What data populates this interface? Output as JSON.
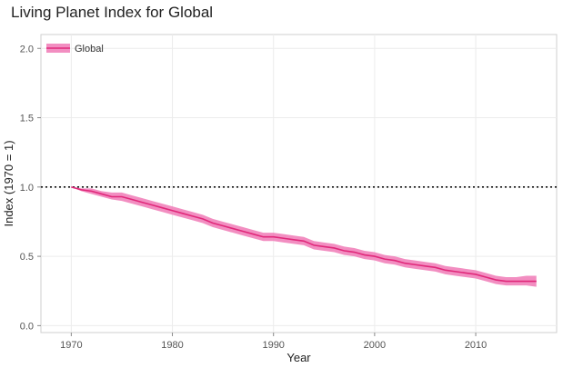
{
  "chart_data": {
    "type": "line",
    "title": "Living Planet Index for Global",
    "xlabel": "Year",
    "ylabel": "Index (1970 = 1)",
    "xlim": [
      1967,
      2018
    ],
    "ylim": [
      -0.05,
      2.1
    ],
    "xticks": [
      1970,
      1980,
      1990,
      2000,
      2010
    ],
    "yticks": [
      0.0,
      0.5,
      1.0,
      1.5,
      2.0
    ],
    "xtick_labels": [
      "1970",
      "1980",
      "1990",
      "2000",
      "2010"
    ],
    "ytick_labels": [
      "0.0",
      "0.5",
      "1.0",
      "1.5",
      "2.0"
    ],
    "reference_line": {
      "y": 1.0,
      "style": "dotted"
    },
    "grid": true,
    "legend_position": "top-left",
    "series": [
      {
        "name": "Global",
        "color": "#e0287a",
        "band_color": "#f07ab6",
        "x": [
          1970,
          1971,
          1972,
          1973,
          1974,
          1975,
          1976,
          1977,
          1978,
          1979,
          1980,
          1981,
          1982,
          1983,
          1984,
          1985,
          1986,
          1987,
          1988,
          1989,
          1990,
          1991,
          1992,
          1993,
          1994,
          1995,
          1996,
          1997,
          1998,
          1999,
          2000,
          2001,
          2002,
          2003,
          2004,
          2005,
          2006,
          2007,
          2008,
          2009,
          2010,
          2011,
          2012,
          2013,
          2014,
          2015,
          2016
        ],
        "values": [
          1.0,
          0.98,
          0.97,
          0.95,
          0.93,
          0.93,
          0.91,
          0.89,
          0.87,
          0.85,
          0.83,
          0.81,
          0.79,
          0.77,
          0.74,
          0.72,
          0.7,
          0.68,
          0.66,
          0.64,
          0.64,
          0.63,
          0.62,
          0.61,
          0.58,
          0.57,
          0.56,
          0.54,
          0.53,
          0.51,
          0.5,
          0.48,
          0.47,
          0.45,
          0.44,
          0.43,
          0.42,
          0.4,
          0.39,
          0.38,
          0.37,
          0.35,
          0.33,
          0.32,
          0.32,
          0.32,
          0.32
        ],
        "lower": [
          1.0,
          0.97,
          0.95,
          0.93,
          0.91,
          0.9,
          0.88,
          0.86,
          0.84,
          0.82,
          0.8,
          0.78,
          0.76,
          0.74,
          0.71,
          0.69,
          0.67,
          0.65,
          0.63,
          0.61,
          0.61,
          0.6,
          0.59,
          0.58,
          0.55,
          0.54,
          0.53,
          0.51,
          0.5,
          0.48,
          0.47,
          0.45,
          0.44,
          0.42,
          0.41,
          0.4,
          0.39,
          0.37,
          0.36,
          0.35,
          0.34,
          0.32,
          0.3,
          0.29,
          0.29,
          0.29,
          0.28
        ],
        "upper": [
          1.0,
          0.99,
          0.99,
          0.97,
          0.96,
          0.96,
          0.94,
          0.92,
          0.9,
          0.88,
          0.86,
          0.84,
          0.82,
          0.8,
          0.77,
          0.75,
          0.73,
          0.71,
          0.69,
          0.67,
          0.67,
          0.66,
          0.65,
          0.64,
          0.61,
          0.6,
          0.59,
          0.57,
          0.56,
          0.54,
          0.53,
          0.51,
          0.5,
          0.48,
          0.47,
          0.46,
          0.45,
          0.43,
          0.42,
          0.41,
          0.4,
          0.38,
          0.36,
          0.35,
          0.35,
          0.36,
          0.36
        ]
      }
    ]
  }
}
